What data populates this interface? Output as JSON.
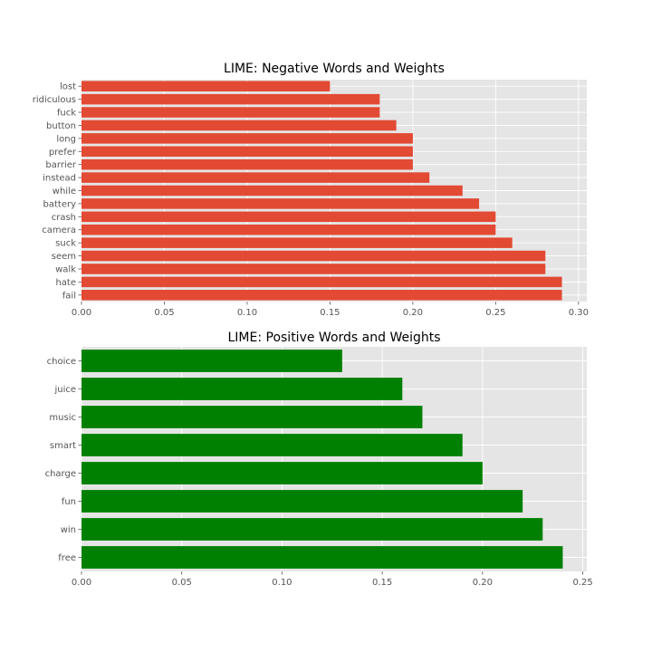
{
  "colors": {
    "negative": "#E24A33",
    "positive": "#008000",
    "plot_background": "#E5E5E5",
    "grid": "#FFFFFF"
  },
  "chart_data": [
    {
      "type": "bar",
      "orientation": "horizontal",
      "title": "LIME: Negative Words and Weights",
      "categories": [
        "fail",
        "hate",
        "walk",
        "seem",
        "suck",
        "camera",
        "crash",
        "battery",
        "while",
        "instead",
        "barrier",
        "prefer",
        "long",
        "button",
        "fuck",
        "ridiculous",
        "lost"
      ],
      "values": [
        0.29,
        0.29,
        0.28,
        0.28,
        0.26,
        0.25,
        0.25,
        0.24,
        0.23,
        0.21,
        0.2,
        0.2,
        0.2,
        0.19,
        0.18,
        0.18,
        0.15
      ],
      "xlim": [
        0,
        0.305
      ],
      "xticks": [
        0.0,
        0.05,
        0.1,
        0.15,
        0.2,
        0.25,
        0.3
      ],
      "xtick_labels": [
        "0.00",
        "0.05",
        "0.10",
        "0.15",
        "0.20",
        "0.25",
        "0.30"
      ],
      "grid": true
    },
    {
      "type": "bar",
      "orientation": "horizontal",
      "title": "LIME: Positive Words and Weights",
      "categories": [
        "free",
        "win",
        "fun",
        "charge",
        "smart",
        "music",
        "juice",
        "choice"
      ],
      "values": [
        0.24,
        0.23,
        0.22,
        0.2,
        0.19,
        0.17,
        0.16,
        0.13
      ],
      "xlim": [
        0,
        0.252
      ],
      "xticks": [
        0.0,
        0.05,
        0.1,
        0.15,
        0.2,
        0.25
      ],
      "xtick_labels": [
        "0.00",
        "0.05",
        "0.10",
        "0.15",
        "0.20",
        "0.25"
      ],
      "grid": true
    }
  ]
}
